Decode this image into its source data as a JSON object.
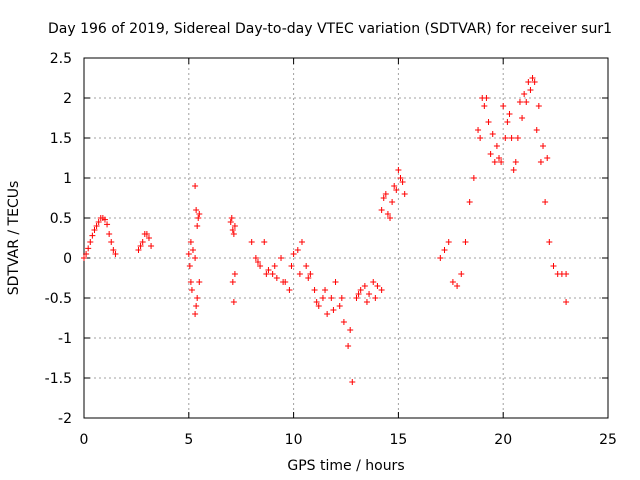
{
  "chart_data": {
    "type": "scatter",
    "title": "Day 196 of 2019, Sidereal Day-to-day VTEC variation (SDTVAR) for receiver sur1",
    "xlabel": "GPS time / hours",
    "ylabel": "SDTVAR / TECUs",
    "xlim": [
      0,
      25
    ],
    "ylim": [
      -2,
      2.5
    ],
    "xticks": [
      0,
      5,
      10,
      15,
      20,
      25
    ],
    "xtick_labels": [
      "0",
      "5",
      "10",
      "15",
      "20",
      "25"
    ],
    "yticks": [
      -2,
      -1.5,
      -1,
      -0.5,
      0,
      0.5,
      1,
      1.5,
      2,
      2.5
    ],
    "ytick_labels": [
      "-2",
      "-1.5",
      "-1",
      "-0.5",
      "0",
      "0.5",
      "1",
      "1.5",
      "2",
      "2.5"
    ],
    "grid": true,
    "marker": "+",
    "color": "#ff0000",
    "series": [
      {
        "name": "sur1",
        "segments": [
          {
            "x": [
              0.0,
              0.1,
              0.2,
              0.3,
              0.4,
              0.5,
              0.6,
              0.7,
              0.8,
              0.9,
              1.0,
              1.1,
              1.2,
              1.3,
              1.4,
              1.5
            ],
            "y": [
              0.0,
              0.05,
              0.12,
              0.2,
              0.28,
              0.35,
              0.4,
              0.45,
              0.5,
              0.5,
              0.48,
              0.42,
              0.3,
              0.2,
              0.1,
              0.05
            ]
          },
          {
            "x": [
              2.6,
              2.7,
              2.8,
              2.9,
              3.0,
              3.1,
              3.2
            ],
            "y": [
              0.1,
              0.15,
              0.2,
              0.3,
              0.3,
              0.25,
              0.15
            ]
          },
          {
            "x": [
              5.0,
              5.05,
              5.1,
              5.1,
              5.15,
              5.2,
              5.3,
              5.35,
              5.4,
              5.45,
              5.5,
              5.5,
              5.4,
              5.35,
              5.3,
              5.3
            ],
            "y": [
              0.05,
              -0.1,
              -0.3,
              0.2,
              -0.4,
              0.1,
              0.9,
              0.6,
              0.4,
              0.5,
              0.55,
              -0.3,
              -0.5,
              -0.6,
              -0.7,
              0.0
            ]
          },
          {
            "x": [
              7.0,
              7.05,
              7.1,
              7.15,
              7.2,
              7.1,
              7.15,
              7.2
            ],
            "y": [
              0.45,
              0.5,
              0.35,
              0.3,
              0.4,
              -0.3,
              -0.55,
              -0.2
            ]
          },
          {
            "x": [
              8.0,
              8.2,
              8.4,
              8.6,
              8.8,
              9.0,
              9.2,
              9.4,
              9.6,
              9.8,
              10.0,
              10.2,
              10.4,
              10.6,
              10.8,
              11.0,
              11.2,
              11.4,
              11.6,
              11.8,
              12.0,
              12.2,
              12.4,
              12.6,
              12.8,
              13.0,
              13.2,
              13.4,
              13.6,
              13.8,
              14.0,
              14.2
            ],
            "y": [
              0.2,
              0.0,
              -0.1,
              0.2,
              -0.15,
              -0.2,
              -0.25,
              0.0,
              -0.3,
              -0.4,
              0.05,
              0.1,
              0.2,
              -0.1,
              -0.2,
              -0.4,
              -0.6,
              -0.5,
              -0.7,
              -0.5,
              -0.3,
              -0.6,
              -0.8,
              -1.1,
              -1.55,
              -0.5,
              -0.4,
              -0.35,
              -0.45,
              -0.3,
              -0.35,
              -0.4
            ]
          },
          {
            "x": [
              8.3,
              8.7,
              9.1,
              9.5,
              9.9,
              10.3,
              10.7,
              11.1,
              11.5,
              11.9,
              12.3,
              12.7,
              13.1,
              13.5,
              13.9
            ],
            "y": [
              -0.05,
              -0.2,
              -0.1,
              -0.3,
              -0.1,
              -0.2,
              -0.25,
              -0.55,
              -0.4,
              -0.65,
              -0.5,
              -0.9,
              -0.45,
              -0.55,
              -0.5
            ]
          },
          {
            "x": [
              14.2,
              14.3,
              14.4,
              14.5,
              14.6,
              14.7,
              14.8,
              14.9,
              15.0,
              15.1,
              15.2,
              15.3
            ],
            "y": [
              0.6,
              0.75,
              0.8,
              0.55,
              0.5,
              0.7,
              0.9,
              0.85,
              1.1,
              1.0,
              0.95,
              0.8
            ]
          },
          {
            "x": [
              17.0,
              17.2,
              17.4,
              17.6,
              17.8,
              18.0,
              18.2,
              18.4,
              18.6,
              18.8,
              19.0,
              19.2,
              19.4,
              19.6,
              19.8,
              20.0,
              20.2,
              20.4,
              20.6,
              20.8,
              21.0,
              21.2,
              21.4,
              21.6,
              21.8,
              22.0,
              22.2,
              22.4,
              22.6,
              22.8,
              23.0
            ],
            "y": [
              0.0,
              0.1,
              0.2,
              -0.3,
              -0.35,
              -0.2,
              0.2,
              0.7,
              1.0,
              1.6,
              2.0,
              2.0,
              1.3,
              1.2,
              1.25,
              1.9,
              1.7,
              1.5,
              1.2,
              1.95,
              2.05,
              2.2,
              2.25,
              1.6,
              1.2,
              0.7,
              0.2,
              -0.1,
              -0.2,
              -0.2,
              -0.2
            ]
          },
          {
            "x": [
              18.9,
              19.1,
              19.3,
              19.5,
              19.7,
              19.9,
              20.1,
              20.3,
              20.5,
              20.7,
              20.9,
              21.1,
              21.3,
              21.5,
              21.7,
              21.9,
              22.1
            ],
            "y": [
              1.5,
              1.9,
              1.7,
              1.55,
              1.4,
              1.2,
              1.5,
              1.8,
              1.1,
              1.5,
              1.75,
              1.95,
              2.1,
              2.2,
              1.9,
              1.4,
              1.25
            ]
          },
          {
            "x": [
              23.0
            ],
            "y": [
              -0.55
            ]
          }
        ]
      }
    ]
  }
}
